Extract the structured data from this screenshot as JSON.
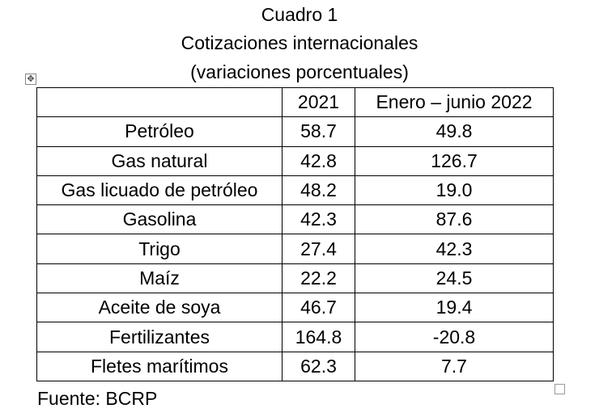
{
  "header": {
    "title": "Cuadro 1",
    "subtitle": "Cotizaciones internacionales",
    "note": "(variaciones porcentuales)"
  },
  "table": {
    "columns": [
      "",
      "2021",
      "Enero – junio 2022"
    ],
    "rows": [
      [
        "Petróleo",
        "58.7",
        "49.8"
      ],
      [
        "Gas natural",
        "42.8",
        "126.7"
      ],
      [
        "Gas licuado de petróleo",
        "48.2",
        "19.0"
      ],
      [
        "Gasolina",
        "42.3",
        "87.6"
      ],
      [
        "Trigo",
        "27.4",
        "42.3"
      ],
      [
        "Maíz",
        "22.2",
        "24.5"
      ],
      [
        "Aceite de soya",
        "46.7",
        "19.4"
      ],
      [
        "Fertilizantes",
        "164.8",
        "-20.8"
      ],
      [
        "Fletes marítimos",
        "62.3",
        "7.7"
      ]
    ]
  },
  "footer": {
    "source": "Fuente: BCRP"
  }
}
